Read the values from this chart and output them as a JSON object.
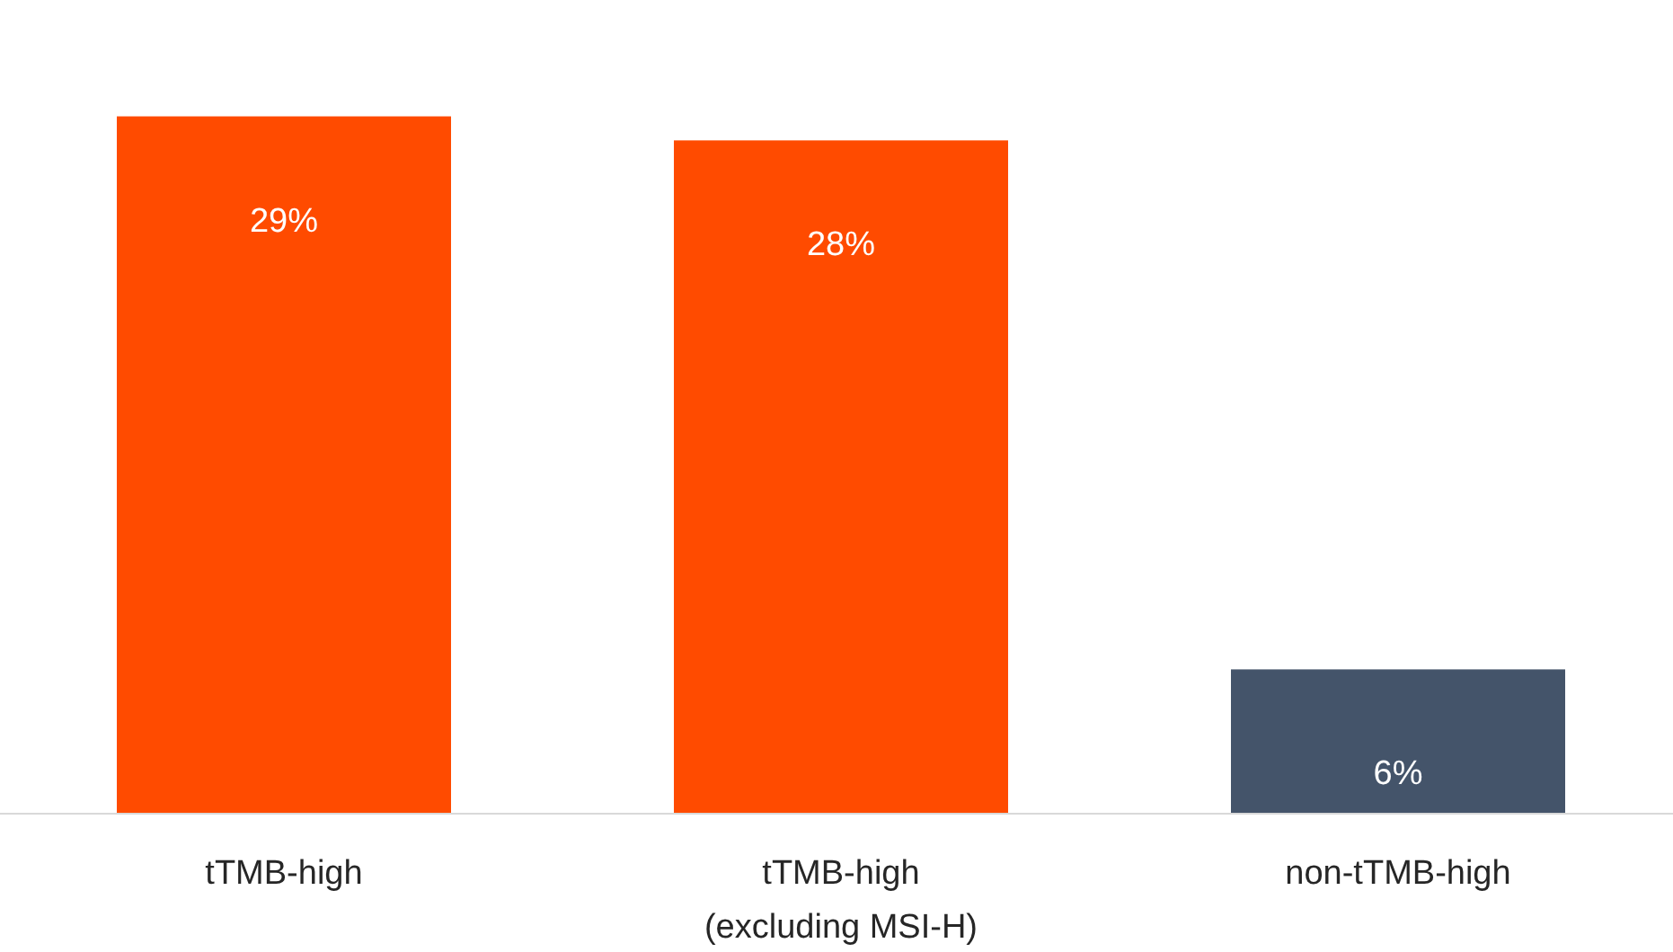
{
  "chart_data": {
    "type": "bar",
    "categories": [
      "tTMB-high",
      "tTMB-high\n(excluding MSI-H)",
      "non-tTMB-high"
    ],
    "values": [
      29,
      28,
      6
    ],
    "colors": [
      "#ff4b00",
      "#ff4b00",
      "#44546a"
    ],
    "data_labels": true,
    "value_labels": [
      "29%",
      "28%",
      "6%"
    ]
  }
}
